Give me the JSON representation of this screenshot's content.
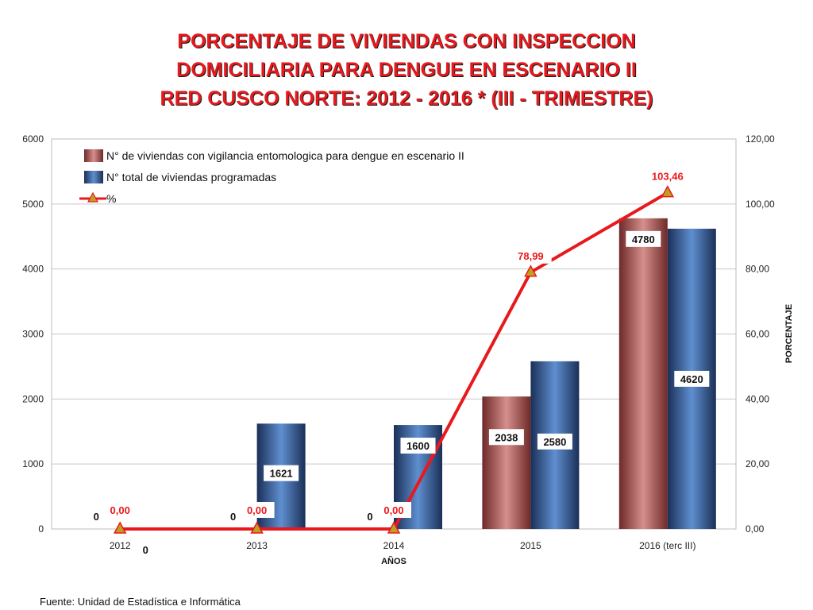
{
  "title_lines": [
    "PORCENTAJE DE VIVIENDAS CON INSPECCION",
    "DOMICILIARIA PARA DENGUE EN ESCENARIO  II",
    "RED CUSCO NORTE: 2012 - 2016 * (III - TRIMESTRE)"
  ],
  "source": "Fuente: Unidad de Estadística e Informática",
  "colors": {
    "series1": "#b5605e",
    "series2": "#4a6ea8",
    "series3": "#e8191d",
    "marker_fill": "#c0a020"
  },
  "chart_data": {
    "type": "bar",
    "categories": [
      "2012",
      "2013",
      "2014",
      "2015",
      "2016 (terc III)"
    ],
    "xlabel": "AÑOS",
    "ylabel": "",
    "y2label": "PORCENTAJE",
    "ylim": [
      0,
      6000
    ],
    "y2lim": [
      0,
      120
    ],
    "yticks": [
      "0",
      "1000",
      "2000",
      "3000",
      "4000",
      "5000",
      "6000"
    ],
    "y2ticks": [
      "0,00",
      "20,00",
      "40,00",
      "60,00",
      "80,00",
      "100,00",
      "120,00"
    ],
    "legend_position": "top-left",
    "grid": true,
    "series": [
      {
        "name": "N° de viviendas con vigilancia entomologica para dengue en escenario II",
        "type": "bar",
        "values": [
          0,
          0,
          0,
          2038,
          4780
        ],
        "labels": [
          "0",
          "0",
          "0",
          "2038",
          "4780"
        ]
      },
      {
        "name": "N° total de viviendas programadas",
        "type": "bar",
        "values": [
          0,
          1621,
          1600,
          2580,
          4620
        ],
        "labels": [
          "0",
          "1621",
          "1600",
          "2580",
          "4620"
        ]
      },
      {
        "name": "%",
        "type": "line",
        "axis": "right",
        "values": [
          0.0,
          0.0,
          0.0,
          78.99,
          103.46
        ],
        "labels": [
          "0,00",
          "0,00",
          "0,00",
          "78,99",
          "103,46"
        ]
      }
    ]
  }
}
